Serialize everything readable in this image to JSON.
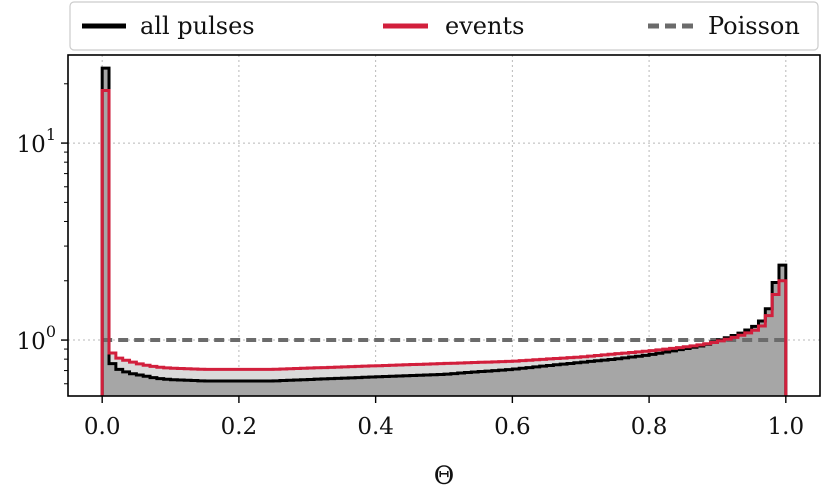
{
  "chart_data": {
    "type": "line",
    "title": "",
    "xlabel": "Θ",
    "ylabel": "",
    "xlim": [
      -0.05,
      1.05
    ],
    "ylim": [
      0.52,
      28
    ],
    "yscale": "log",
    "grid": true,
    "legend_position": "top",
    "x_ticks": [
      0.0,
      0.2,
      0.4,
      0.6,
      0.8,
      1.0
    ],
    "x_tick_labels": [
      "0.0",
      "0.2",
      "0.4",
      "0.6",
      "0.8",
      "1.0"
    ],
    "y_ticks": [
      {
        "value": 1,
        "base": "10",
        "exponent": "0"
      },
      {
        "value": 10,
        "base": "10",
        "exponent": "1"
      }
    ],
    "bin_edges_range": [
      0.0,
      1.0
    ],
    "series": [
      {
        "name": "all pulses",
        "style": "step",
        "color": "#000000",
        "fill": "#a6a6a6",
        "x": [
          0.0,
          0.01,
          0.02,
          0.04,
          0.06,
          0.08,
          0.1,
          0.15,
          0.2,
          0.25,
          0.3,
          0.35,
          0.4,
          0.45,
          0.5,
          0.55,
          0.6,
          0.65,
          0.7,
          0.75,
          0.8,
          0.85,
          0.88,
          0.9,
          0.92,
          0.94,
          0.96,
          0.97,
          0.98,
          0.99,
          1.0
        ],
        "values": [
          24,
          0.8,
          0.72,
          0.68,
          0.66,
          0.64,
          0.63,
          0.62,
          0.62,
          0.62,
          0.63,
          0.64,
          0.65,
          0.66,
          0.67,
          0.69,
          0.71,
          0.74,
          0.77,
          0.8,
          0.84,
          0.9,
          0.94,
          0.99,
          1.04,
          1.1,
          1.2,
          1.3,
          1.6,
          2.4,
          2.4
        ]
      },
      {
        "name": "events",
        "style": "step",
        "color": "#d21f3c",
        "fill": "#dadada",
        "x": [
          0.0,
          0.01,
          0.02,
          0.04,
          0.06,
          0.08,
          0.1,
          0.15,
          0.2,
          0.25,
          0.3,
          0.35,
          0.4,
          0.45,
          0.5,
          0.55,
          0.6,
          0.65,
          0.7,
          0.75,
          0.8,
          0.85,
          0.88,
          0.9,
          0.92,
          0.94,
          0.96,
          0.97,
          0.98,
          0.99,
          1.0
        ],
        "values": [
          18.5,
          0.9,
          0.82,
          0.78,
          0.75,
          0.73,
          0.72,
          0.71,
          0.71,
          0.71,
          0.72,
          0.73,
          0.74,
          0.75,
          0.76,
          0.77,
          0.78,
          0.8,
          0.82,
          0.85,
          0.88,
          0.92,
          0.95,
          0.98,
          1.02,
          1.07,
          1.14,
          1.22,
          1.45,
          2.0,
          2.0
        ]
      },
      {
        "name": "Poisson",
        "style": "dashed",
        "color": "#6b6b6b",
        "x": [
          0.0,
          1.0
        ],
        "values": [
          1.0,
          1.0
        ]
      }
    ]
  }
}
